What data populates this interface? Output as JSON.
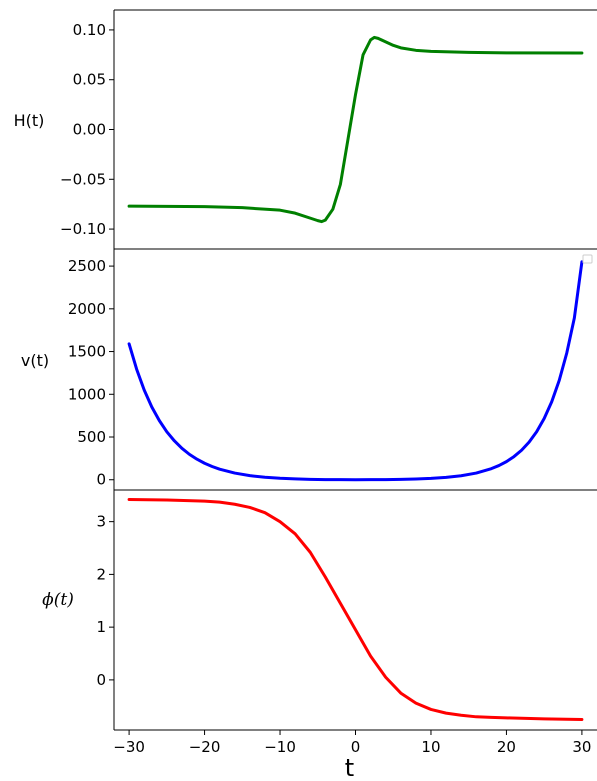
{
  "chart_data": [
    {
      "type": "line",
      "ylabel": "H(t)",
      "xlim": [
        -32,
        32
      ],
      "ylim": [
        -0.12,
        0.12
      ],
      "yticks": [
        -0.1,
        -0.05,
        0.0,
        0.05,
        0.1
      ],
      "ytick_labels": [
        "−0.10",
        "−0.05",
        "0.00",
        "0.05",
        "0.10"
      ],
      "color": "#008000",
      "series": [
        {
          "x": [
            -30,
            -20,
            -15,
            -10,
            -8,
            -6,
            -5,
            -4.5,
            -4,
            -3,
            -2,
            -1,
            0,
            1,
            2,
            2.5,
            3,
            4,
            5,
            6,
            8,
            10,
            15,
            20,
            30
          ],
          "y": [
            -0.077,
            -0.0775,
            -0.0785,
            -0.081,
            -0.084,
            -0.089,
            -0.0915,
            -0.0925,
            -0.091,
            -0.08,
            -0.055,
            -0.01,
            0.035,
            0.075,
            0.09,
            0.0925,
            0.0915,
            0.088,
            0.0845,
            0.082,
            0.0795,
            0.0785,
            0.0775,
            0.077,
            0.0768
          ]
        }
      ]
    },
    {
      "type": "line",
      "ylabel": "v(t)",
      "xlim": [
        -32,
        32
      ],
      "ylim": [
        -120,
        2700
      ],
      "yticks": [
        0,
        500,
        1000,
        1500,
        2000,
        2500
      ],
      "ytick_labels": [
        "0",
        "500",
        "1000",
        "1500",
        "2000",
        "2500"
      ],
      "color": "#0000ff",
      "legend": "empty box at top-right",
      "series": [
        {
          "x": [
            -30,
            -29,
            -28,
            -27,
            -26,
            -25,
            -24,
            -23,
            -22,
            -21,
            -20,
            -19,
            -18,
            -16,
            -14,
            -12,
            -10,
            -8,
            -6,
            -4,
            -2,
            0,
            2,
            4,
            6,
            8,
            10,
            12,
            14,
            16,
            18,
            19,
            20,
            21,
            22,
            23,
            24,
            25,
            26,
            27,
            28,
            29,
            30
          ],
          "y": [
            1590,
            1293,
            1050,
            853,
            693,
            561,
            455,
            368,
            297,
            240,
            193,
            155,
            124,
            78,
            48,
            29,
            17,
            10,
            5,
            2,
            1,
            0,
            1,
            2,
            5,
            9,
            16,
            28,
            47,
            78,
            130,
            166,
            212,
            271,
            345,
            440,
            561,
            716,
            913,
            1164,
            1485,
            1893,
            2550
          ]
        }
      ]
    },
    {
      "type": "line",
      "ylabel": "ϕ(t)",
      "xlabel": "t",
      "xlim": [
        -32,
        32
      ],
      "ylim": [
        -0.95,
        3.6
      ],
      "yticks": [
        0,
        1,
        2,
        3
      ],
      "ytick_labels": [
        "0",
        "1",
        "2",
        "3"
      ],
      "xticks": [
        -30,
        -20,
        -10,
        0,
        10,
        20,
        30
      ],
      "xtick_labels": [
        "−30",
        "−20",
        "−10",
        "0",
        "10",
        "20",
        "30"
      ],
      "color": "#ff0000",
      "series": [
        {
          "x": [
            -30,
            -25,
            -20,
            -18,
            -16,
            -14,
            -12,
            -10,
            -8,
            -6,
            -4,
            -2,
            0,
            2,
            4,
            6,
            8,
            10,
            12,
            14,
            16,
            18,
            20,
            25,
            30
          ],
          "y": [
            3.42,
            3.41,
            3.39,
            3.37,
            3.33,
            3.27,
            3.17,
            3.0,
            2.77,
            2.42,
            1.95,
            1.45,
            0.95,
            0.45,
            0.05,
            -0.25,
            -0.44,
            -0.56,
            -0.63,
            -0.67,
            -0.7,
            -0.71,
            -0.72,
            -0.74,
            -0.75
          ]
        }
      ]
    }
  ]
}
